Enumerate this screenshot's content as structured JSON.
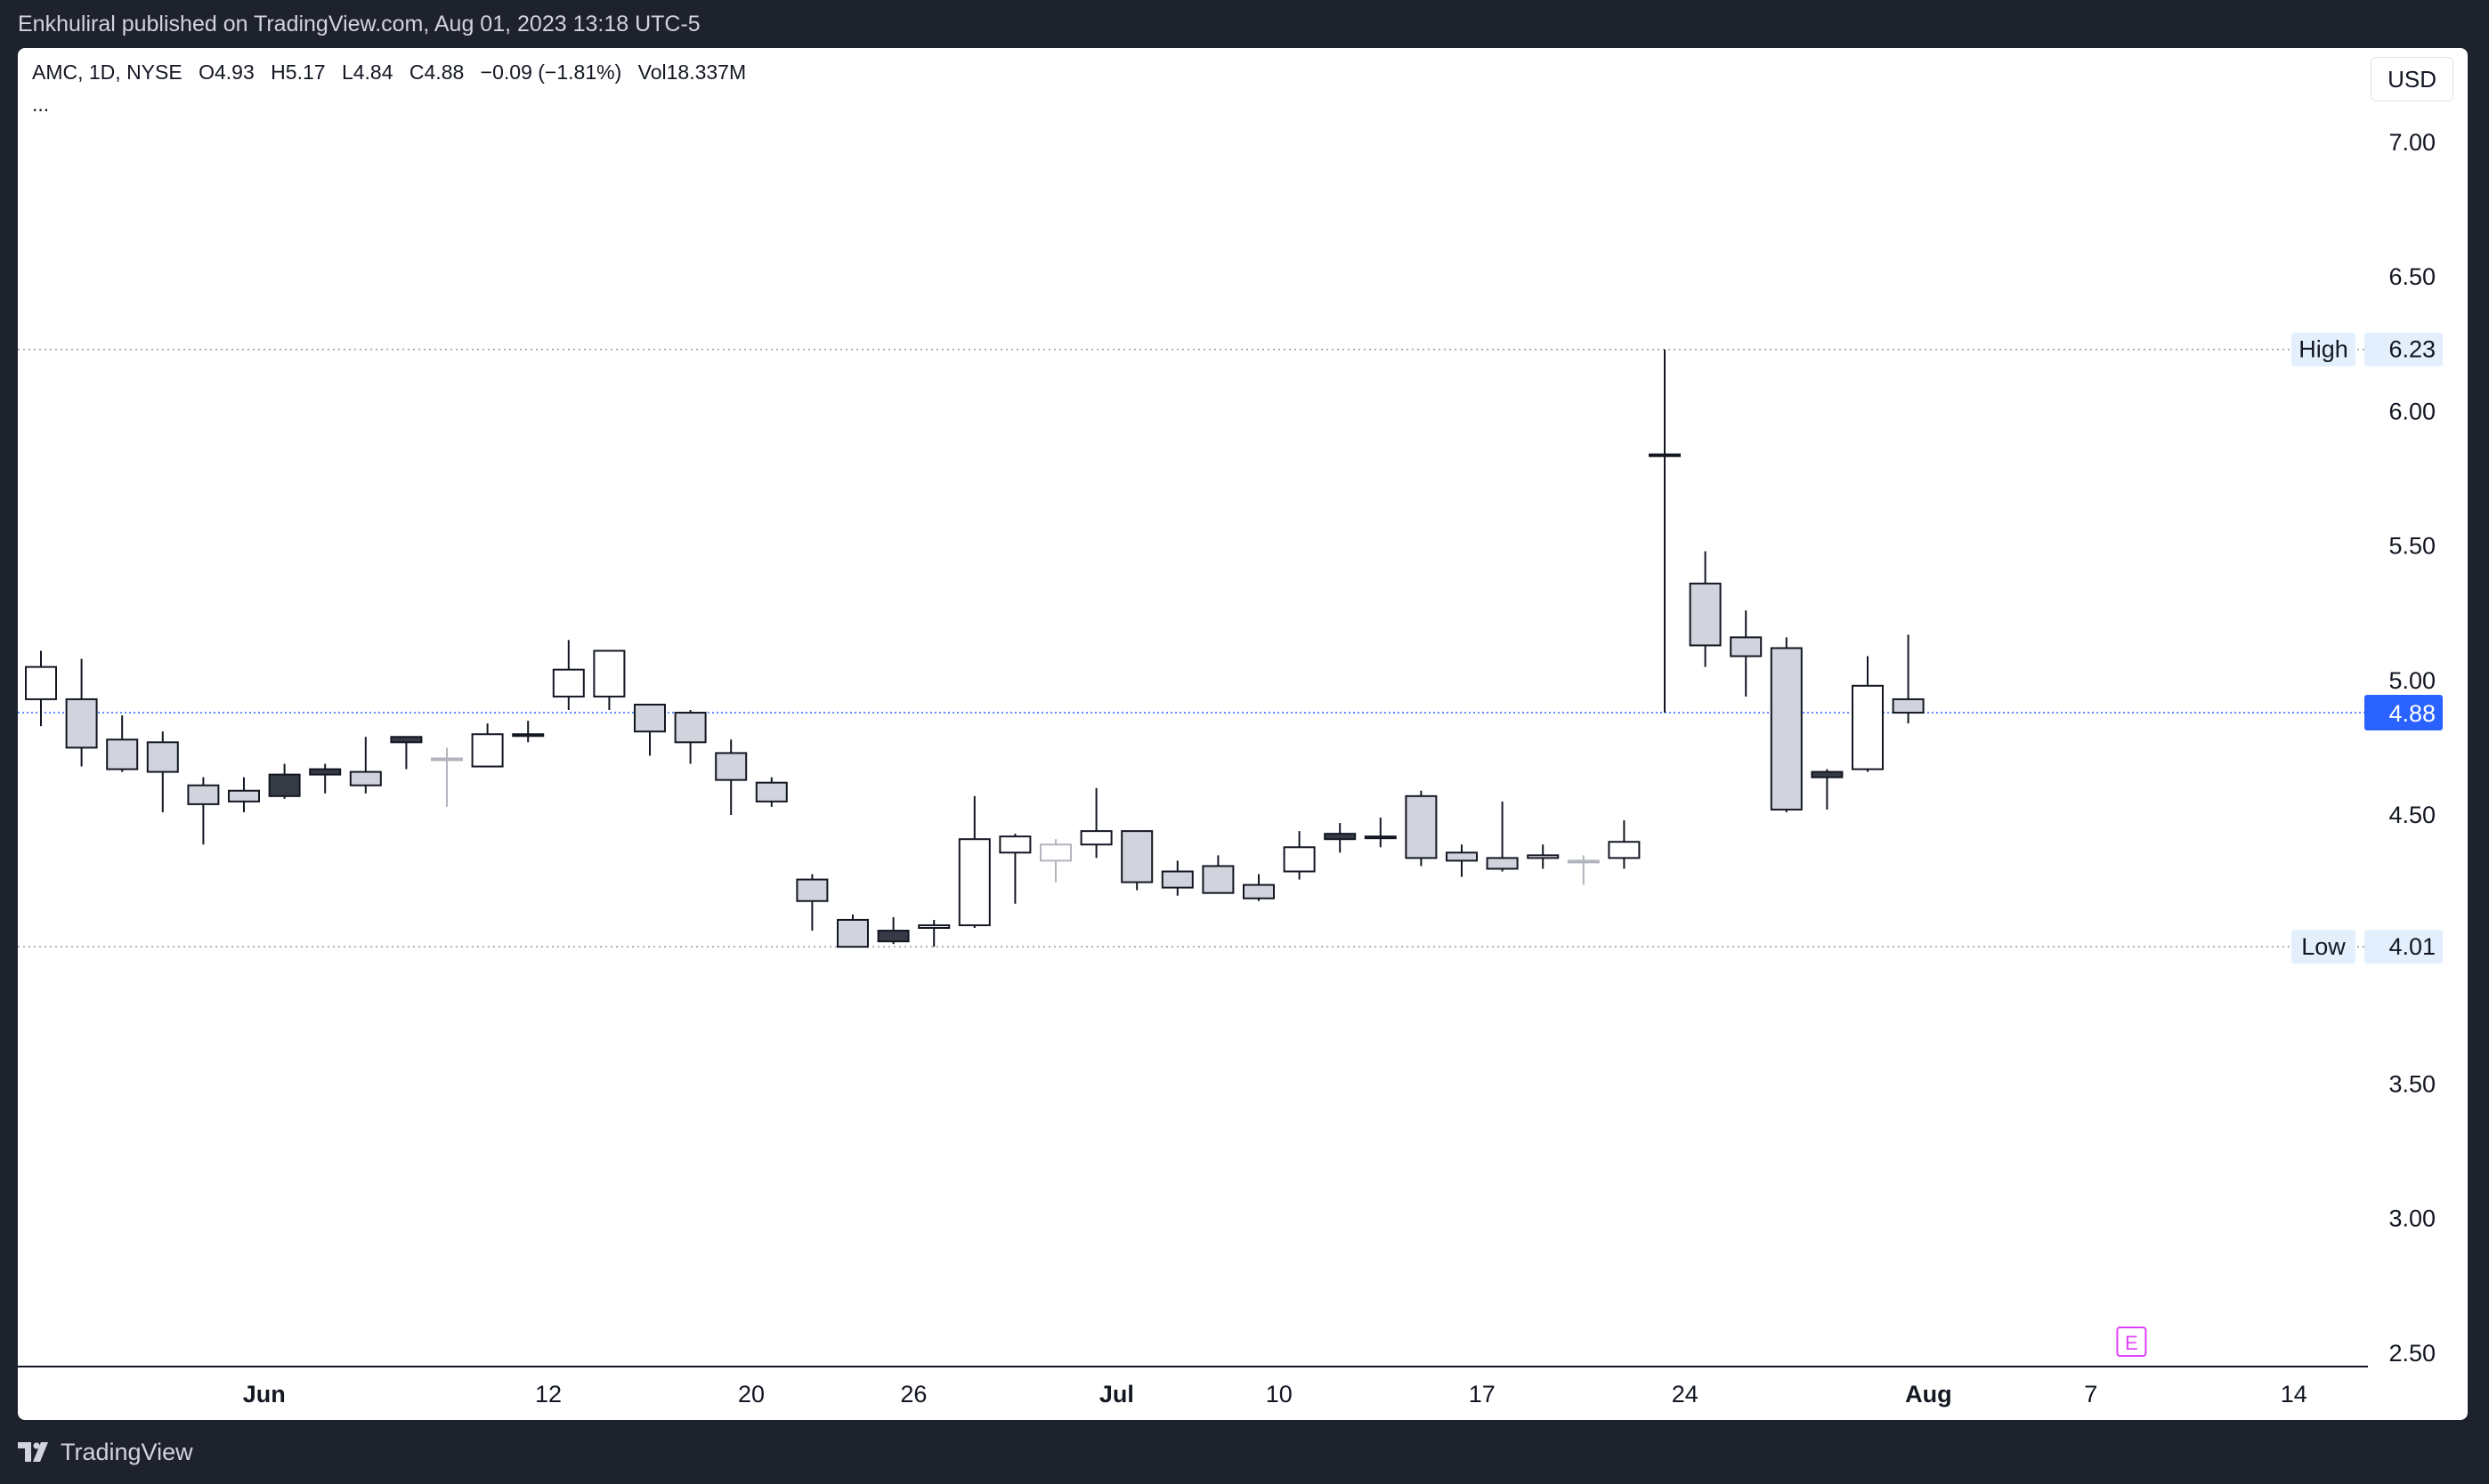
{
  "header": {
    "publish_text": "Enkhuliral published on TradingView.com, Aug 01, 2023 13:18 UTC-5"
  },
  "legend": {
    "symbol": "AMC, 1D, NYSE",
    "o_label": "O",
    "o_value": "4.93",
    "h_label": "H",
    "h_value": "5.17",
    "l_label": "L",
    "l_value": "4.84",
    "c_label": "C",
    "c_value": "4.88",
    "change": "−0.09 (−1.81%)",
    "vol_label": "Vol",
    "vol_value": "18.337M",
    "more": "..."
  },
  "currency_label": "USD",
  "footer": {
    "brand": "TradingView"
  },
  "colors": {
    "up_fill": "#ffffff",
    "down_fill": "#d1d4dc",
    "dark_fill": "#363a45",
    "border": "#131722",
    "price_line": "#2962ff",
    "label_bg": "#e3effd",
    "earnings": "#e040fb"
  },
  "chart_data": {
    "type": "candlestick",
    "x_ticks": [
      {
        "label": "Jun",
        "index": 5.5,
        "bold": true
      },
      {
        "label": "12",
        "index": 12.5,
        "bold": false
      },
      {
        "label": "20",
        "index": 17.5,
        "bold": false
      },
      {
        "label": "26",
        "index": 21.5,
        "bold": false
      },
      {
        "label": "Jul",
        "index": 26.5,
        "bold": true
      },
      {
        "label": "10",
        "index": 30.5,
        "bold": false
      },
      {
        "label": "17",
        "index": 35.5,
        "bold": false
      },
      {
        "label": "24",
        "index": 40.5,
        "bold": false
      },
      {
        "label": "Aug",
        "index": 46.5,
        "bold": true
      },
      {
        "label": "7",
        "index": 50.5,
        "bold": false
      },
      {
        "label": "14",
        "index": 55.5,
        "bold": false
      }
    ],
    "y_ticks": [
      "7.00",
      "6.50",
      "6.00",
      "5.50",
      "5.00",
      "4.50",
      "3.50",
      "3.00",
      "2.50"
    ],
    "ylim": [
      2.45,
      7.35
    ],
    "high": {
      "label": "High",
      "value": "6.23"
    },
    "low": {
      "label": "Low",
      "value": "4.01"
    },
    "last": {
      "value": "4.88"
    },
    "earnings_marker": {
      "label": "E",
      "index": 51.5
    },
    "candles": [
      {
        "o": 4.93,
        "h": 5.11,
        "l": 4.83,
        "c": 5.05,
        "s": "up"
      },
      {
        "o": 4.93,
        "h": 5.08,
        "l": 4.68,
        "c": 4.75,
        "s": "down"
      },
      {
        "o": 4.78,
        "h": 4.87,
        "l": 4.66,
        "c": 4.67,
        "s": "down"
      },
      {
        "o": 4.77,
        "h": 4.81,
        "l": 4.51,
        "c": 4.66,
        "s": "down"
      },
      {
        "o": 4.61,
        "h": 4.64,
        "l": 4.39,
        "c": 4.54,
        "s": "down"
      },
      {
        "o": 4.55,
        "h": 4.64,
        "l": 4.51,
        "c": 4.59,
        "s": "down"
      },
      {
        "o": 4.57,
        "h": 4.69,
        "l": 4.56,
        "c": 4.65,
        "s": "dark"
      },
      {
        "o": 4.65,
        "h": 4.69,
        "l": 4.58,
        "c": 4.67,
        "s": "dark"
      },
      {
        "o": 4.66,
        "h": 4.79,
        "l": 4.58,
        "c": 4.61,
        "s": "down"
      },
      {
        "o": 4.77,
        "h": 4.79,
        "l": 4.67,
        "c": 4.79,
        "s": "dark"
      },
      {
        "o": 4.71,
        "h": 4.75,
        "l": 4.53,
        "c": 4.71,
        "s": "light"
      },
      {
        "o": 4.68,
        "h": 4.84,
        "l": 4.68,
        "c": 4.8,
        "s": "up"
      },
      {
        "o": 4.8,
        "h": 4.85,
        "l": 4.77,
        "c": 4.8,
        "s": "up"
      },
      {
        "o": 4.94,
        "h": 5.15,
        "l": 4.89,
        "c": 5.04,
        "s": "up"
      },
      {
        "o": 4.94,
        "h": 5.1,
        "l": 4.89,
        "c": 5.11,
        "s": "up"
      },
      {
        "o": 4.91,
        "h": 4.91,
        "l": 4.72,
        "c": 4.81,
        "s": "down"
      },
      {
        "o": 4.88,
        "h": 4.89,
        "l": 4.69,
        "c": 4.77,
        "s": "down"
      },
      {
        "o": 4.73,
        "h": 4.78,
        "l": 4.5,
        "c": 4.63,
        "s": "down"
      },
      {
        "o": 4.62,
        "h": 4.64,
        "l": 4.53,
        "c": 4.55,
        "s": "down"
      },
      {
        "o": 4.26,
        "h": 4.28,
        "l": 4.07,
        "c": 4.18,
        "s": "down"
      },
      {
        "o": 4.11,
        "h": 4.13,
        "l": 4.01,
        "c": 4.01,
        "s": "down"
      },
      {
        "o": 4.07,
        "h": 4.12,
        "l": 4.02,
        "c": 4.03,
        "s": "dark"
      },
      {
        "o": 4.08,
        "h": 4.11,
        "l": 4.01,
        "c": 4.09,
        "s": "up"
      },
      {
        "o": 4.09,
        "h": 4.57,
        "l": 4.08,
        "c": 4.41,
        "s": "up"
      },
      {
        "o": 4.36,
        "h": 4.43,
        "l": 4.17,
        "c": 4.42,
        "s": "up"
      },
      {
        "o": 4.39,
        "h": 4.41,
        "l": 4.25,
        "c": 4.33,
        "s": "light"
      },
      {
        "o": 4.39,
        "h": 4.6,
        "l": 4.34,
        "c": 4.44,
        "s": "up"
      },
      {
        "o": 4.44,
        "h": 4.44,
        "l": 4.22,
        "c": 4.25,
        "s": "down"
      },
      {
        "o": 4.29,
        "h": 4.33,
        "l": 4.2,
        "c": 4.23,
        "s": "down"
      },
      {
        "o": 4.31,
        "h": 4.35,
        "l": 4.21,
        "c": 4.21,
        "s": "down"
      },
      {
        "o": 4.24,
        "h": 4.28,
        "l": 4.18,
        "c": 4.19,
        "s": "down"
      },
      {
        "o": 4.29,
        "h": 4.44,
        "l": 4.26,
        "c": 4.38,
        "s": "up"
      },
      {
        "o": 4.43,
        "h": 4.47,
        "l": 4.36,
        "c": 4.41,
        "s": "dark"
      },
      {
        "o": 4.42,
        "h": 4.49,
        "l": 4.38,
        "c": 4.42,
        "s": "dark"
      },
      {
        "o": 4.57,
        "h": 4.59,
        "l": 4.31,
        "c": 4.34,
        "s": "down"
      },
      {
        "o": 4.36,
        "h": 4.39,
        "l": 4.27,
        "c": 4.33,
        "s": "down"
      },
      {
        "o": 4.34,
        "h": 4.55,
        "l": 4.29,
        "c": 4.3,
        "s": "down"
      },
      {
        "o": 4.34,
        "h": 4.39,
        "l": 4.3,
        "c": 4.35,
        "s": "up"
      },
      {
        "o": 4.33,
        "h": 4.35,
        "l": 4.24,
        "c": 4.33,
        "s": "light"
      },
      {
        "o": 4.34,
        "h": 4.48,
        "l": 4.3,
        "c": 4.4,
        "s": "up"
      },
      {
        "o": 5.84,
        "h": 6.23,
        "l": 4.88,
        "c": 5.84,
        "s": "dark"
      },
      {
        "o": 5.36,
        "h": 5.48,
        "l": 5.05,
        "c": 5.13,
        "s": "down"
      },
      {
        "o": 5.16,
        "h": 5.26,
        "l": 4.94,
        "c": 5.09,
        "s": "down"
      },
      {
        "o": 5.12,
        "h": 5.16,
        "l": 4.51,
        "c": 4.52,
        "s": "down"
      },
      {
        "o": 4.66,
        "h": 4.67,
        "l": 4.52,
        "c": 4.64,
        "s": "dark"
      },
      {
        "o": 4.67,
        "h": 5.09,
        "l": 4.66,
        "c": 4.98,
        "s": "up"
      },
      {
        "o": 4.93,
        "h": 5.17,
        "l": 4.84,
        "c": 4.88,
        "s": "down"
      }
    ]
  }
}
